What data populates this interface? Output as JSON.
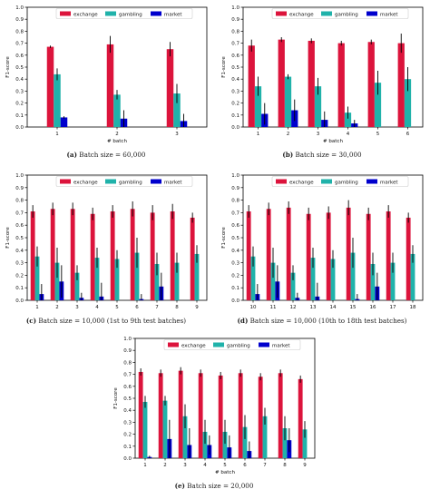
{
  "colors": {
    "exchange": "#dc143c",
    "gambling": "#20b2aa",
    "market": "#0000cd",
    "errorbar": "#000000"
  },
  "chart_data": [
    {
      "type": "bar",
      "caption_letter": "(a)",
      "caption_text": "Batch size = 60,000",
      "ylabel": "F1-score",
      "xlabel": "# batch",
      "ylim": [
        0,
        1.0
      ],
      "yticks": [
        "0.0",
        "0.1",
        "0.2",
        "0.3",
        "0.4",
        "0.5",
        "0.6",
        "0.7",
        "0.8",
        "0.9",
        "1.0"
      ],
      "categories": [
        "1",
        "2",
        "3"
      ],
      "legend": [
        "exchange",
        "gambling",
        "market"
      ],
      "legend_position": "top",
      "series": [
        {
          "name": "exchange",
          "values": [
            0.67,
            0.69,
            0.65
          ],
          "errors": [
            0.01,
            0.07,
            0.06
          ]
        },
        {
          "name": "gambling",
          "values": [
            0.44,
            0.27,
            0.28
          ],
          "errors": [
            0.05,
            0.04,
            0.08
          ]
        },
        {
          "name": "market",
          "values": [
            0.08,
            0.07,
            0.05
          ],
          "errors": [
            0.01,
            0.07,
            0.06
          ]
        }
      ]
    },
    {
      "type": "bar",
      "caption_letter": "(b)",
      "caption_text": "Batch size = 30,000",
      "ylabel": "F1-score",
      "xlabel": "# batch",
      "ylim": [
        0,
        1.0
      ],
      "yticks": [
        "0.0",
        "0.1",
        "0.2",
        "0.3",
        "0.4",
        "0.5",
        "0.6",
        "0.7",
        "0.8",
        "0.9",
        "1.0"
      ],
      "categories": [
        "1",
        "2",
        "3",
        "4",
        "5",
        "6"
      ],
      "legend": [
        "exchange",
        "gambling",
        "market"
      ],
      "legend_position": "top",
      "series": [
        {
          "name": "exchange",
          "values": [
            0.68,
            0.73,
            0.72,
            0.7,
            0.71,
            0.7
          ],
          "errors": [
            0.05,
            0.02,
            0.02,
            0.02,
            0.02,
            0.08
          ]
        },
        {
          "name": "gambling",
          "values": [
            0.34,
            0.42,
            0.34,
            0.12,
            0.37,
            0.4
          ],
          "errors": [
            0.08,
            0.02,
            0.07,
            0.05,
            0.1,
            0.1
          ]
        },
        {
          "name": "market",
          "values": [
            0.11,
            0.14,
            0.06,
            0.03,
            0.0,
            0.0
          ],
          "errors": [
            0.09,
            0.09,
            0.07,
            0.03,
            0.0,
            0.0
          ]
        }
      ]
    },
    {
      "type": "bar",
      "caption_letter": "(c)",
      "caption_text": "Batch size = 10,000 (1st to 9th test batches)",
      "ylabel": "F1-score",
      "xlabel": "",
      "ylim": [
        0,
        1.0
      ],
      "yticks": [
        "0.0",
        "0.1",
        "0.2",
        "0.3",
        "0.4",
        "0.5",
        "0.6",
        "0.7",
        "0.8",
        "0.9",
        "1.0"
      ],
      "categories": [
        "1",
        "2",
        "3",
        "4",
        "5",
        "6",
        "7",
        "8",
        "9"
      ],
      "legend": [
        "exchange",
        "gambling",
        "market"
      ],
      "legend_position": "top",
      "series": [
        {
          "name": "exchange",
          "values": [
            0.71,
            0.73,
            0.73,
            0.69,
            0.71,
            0.73,
            0.7,
            0.71,
            0.66
          ],
          "errors": [
            0.05,
            0.05,
            0.05,
            0.05,
            0.05,
            0.06,
            0.06,
            0.06,
            0.04
          ]
        },
        {
          "name": "gambling",
          "values": [
            0.35,
            0.3,
            0.22,
            0.34,
            0.33,
            0.38,
            0.29,
            0.3,
            0.37
          ],
          "errors": [
            0.08,
            0.12,
            0.06,
            0.08,
            0.07,
            0.12,
            0.09,
            0.08,
            0.07
          ]
        },
        {
          "name": "market",
          "values": [
            0.05,
            0.15,
            0.02,
            0.03,
            0.0,
            0.01,
            0.11,
            0.0,
            0.0
          ],
          "errors": [
            0.08,
            0.13,
            0.04,
            0.11,
            0.0,
            0.04,
            0.11,
            0.0,
            0.0
          ]
        }
      ]
    },
    {
      "type": "bar",
      "caption_letter": "(d)",
      "caption_text": "Batch size = 10,000 (10th to 18th test batches)",
      "ylabel": "F1-score",
      "xlabel": "",
      "ylim": [
        0,
        1.0
      ],
      "yticks": [
        "0.0",
        "0.1",
        "0.2",
        "0.3",
        "0.4",
        "0.5",
        "0.6",
        "0.7",
        "0.8",
        "0.9",
        "1.0"
      ],
      "categories": [
        "10",
        "11",
        "12",
        "13",
        "14",
        "15",
        "16",
        "17",
        "18"
      ],
      "legend": [
        "exchange",
        "gambling",
        "market"
      ],
      "legend_position": "top",
      "series": [
        {
          "name": "exchange",
          "values": [
            0.71,
            0.73,
            0.74,
            0.69,
            0.7,
            0.74,
            0.69,
            0.71,
            0.66
          ],
          "errors": [
            0.05,
            0.05,
            0.05,
            0.05,
            0.05,
            0.06,
            0.05,
            0.05,
            0.04
          ]
        },
        {
          "name": "gambling",
          "values": [
            0.35,
            0.3,
            0.22,
            0.34,
            0.33,
            0.38,
            0.29,
            0.3,
            0.37
          ],
          "errors": [
            0.08,
            0.12,
            0.06,
            0.08,
            0.07,
            0.12,
            0.09,
            0.08,
            0.07
          ]
        },
        {
          "name": "market",
          "values": [
            0.05,
            0.15,
            0.02,
            0.03,
            0.0,
            0.01,
            0.11,
            0.0,
            0.0
          ],
          "errors": [
            0.08,
            0.13,
            0.04,
            0.11,
            0.0,
            0.04,
            0.11,
            0.0,
            0.0
          ]
        }
      ]
    },
    {
      "type": "bar",
      "caption_letter": "(e)",
      "caption_text": "Batch size = 20,000",
      "ylabel": "F1-score",
      "xlabel": "# batch",
      "ylim": [
        0,
        1.0
      ],
      "yticks": [
        "0.0",
        "0.1",
        "0.2",
        "0.3",
        "0.4",
        "0.5",
        "0.6",
        "0.7",
        "0.8",
        "0.9",
        "1.0"
      ],
      "categories": [
        "1",
        "2",
        "3",
        "4",
        "5",
        "6",
        "7",
        "8",
        "9"
      ],
      "legend": [
        "exchange",
        "gambling",
        "market"
      ],
      "legend_position": "top",
      "series": [
        {
          "name": "exchange",
          "values": [
            0.72,
            0.71,
            0.73,
            0.71,
            0.69,
            0.71,
            0.68,
            0.71,
            0.66
          ],
          "errors": [
            0.03,
            0.03,
            0.03,
            0.03,
            0.03,
            0.03,
            0.03,
            0.03,
            0.03
          ]
        },
        {
          "name": "gambling",
          "values": [
            0.47,
            0.48,
            0.35,
            0.22,
            0.22,
            0.26,
            0.35,
            0.25,
            0.24
          ],
          "errors": [
            0.05,
            0.04,
            0.1,
            0.1,
            0.1,
            0.1,
            0.07,
            0.1,
            0.07
          ]
        },
        {
          "name": "market",
          "values": [
            0.01,
            0.16,
            0.11,
            0.11,
            0.09,
            0.06,
            0.0,
            0.15,
            0.0
          ],
          "errors": [
            0.01,
            0.16,
            0.14,
            0.08,
            0.1,
            0.08,
            0.0,
            0.1,
            0.0
          ]
        }
      ]
    }
  ]
}
